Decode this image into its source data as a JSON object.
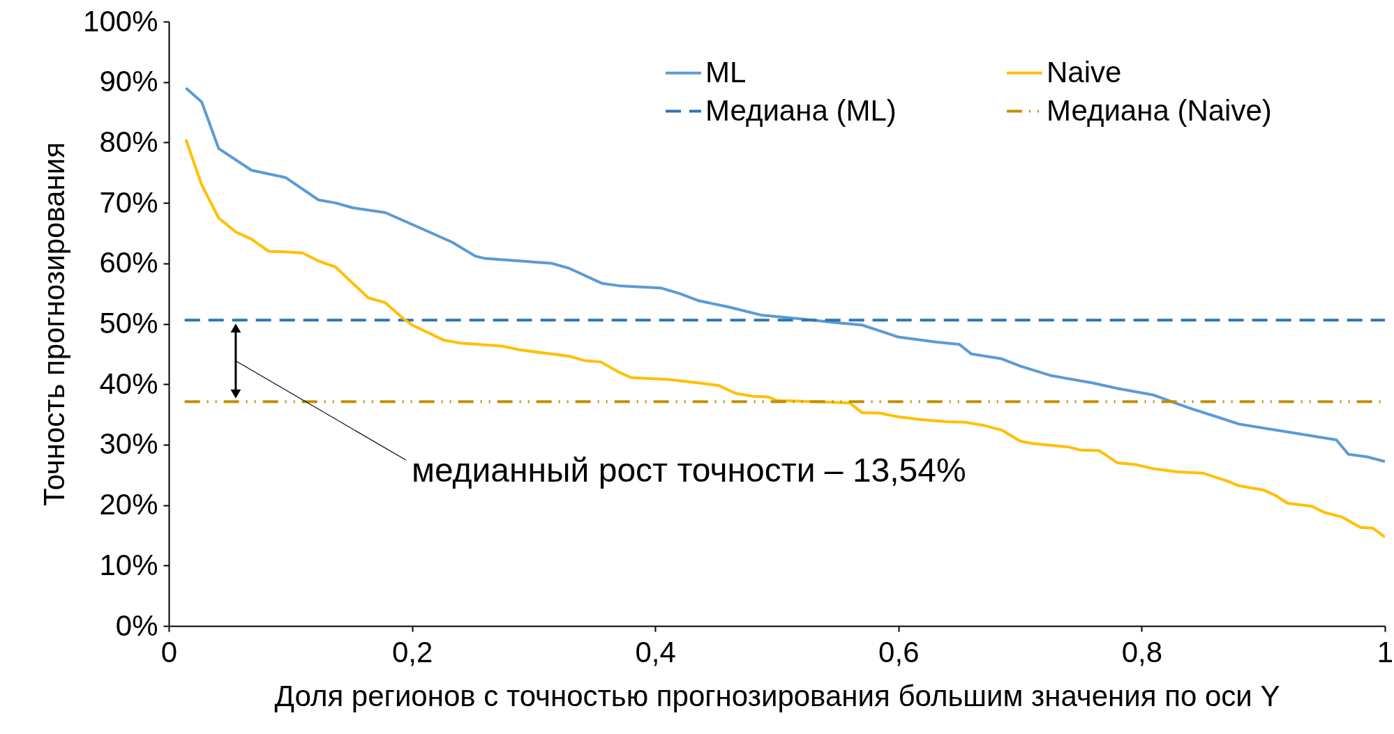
{
  "chart_data": {
    "type": "line",
    "xlabel": "Доля регионов с точностью прогнозирования большим значения по оси Y",
    "ylabel": "Точность прогнозирования",
    "xlim": [
      0,
      1
    ],
    "xticks": [
      0,
      {
        "value": 0.2,
        "label": "0,2"
      },
      {
        "value": 0.4,
        "label": "0,4"
      },
      {
        "value": 0.6,
        "label": "0,6"
      },
      {
        "value": 0.8,
        "label": "0,8"
      },
      1
    ],
    "ylim": [
      0,
      100
    ],
    "yticks": [
      {
        "value": 0,
        "label": "0%"
      },
      {
        "value": 10,
        "label": "10%"
      },
      {
        "value": 20,
        "label": "20%"
      },
      {
        "value": 30,
        "label": "30%"
      },
      {
        "value": 40,
        "label": "40%"
      },
      {
        "value": 50,
        "label": "50%"
      },
      {
        "value": 60,
        "label": "60%"
      },
      {
        "value": 70,
        "label": "70%"
      },
      {
        "value": 80,
        "label": "80%"
      },
      {
        "value": 90,
        "label": "90%"
      },
      {
        "value": 100,
        "label": "100%"
      }
    ],
    "grid": false,
    "legend": "top right",
    "marker": "none",
    "annotations": [
      "медианный рост точности – 13,54%"
    ],
    "series": [
      {
        "name": "ML",
        "color": "#5b9bd5",
        "line_style": "solid",
        "x": [
          0.014,
          0.027,
          0.041,
          0.068,
          0.096,
          0.123,
          0.137,
          0.151,
          0.178,
          0.205,
          0.233,
          0.252,
          0.26,
          0.315,
          0.329,
          0.356,
          0.37,
          0.405,
          0.42,
          0.436,
          0.46,
          0.488,
          0.52,
          0.548,
          0.57,
          0.582,
          0.6,
          0.63,
          0.65,
          0.66,
          0.685,
          0.7,
          0.726,
          0.76,
          0.78,
          0.81,
          0.826,
          0.84,
          0.868,
          0.88,
          0.96,
          0.97,
          0.985,
          1.0
        ],
        "values": [
          89,
          86.7,
          79,
          75.4,
          74.2,
          70.5,
          70,
          69.2,
          68.4,
          66,
          63.5,
          61.2,
          60.8,
          60,
          59.2,
          56.7,
          56.3,
          55.9,
          55,
          53.8,
          52.8,
          51.4,
          50.8,
          50.2,
          49.8,
          49,
          47.8,
          47,
          46.6,
          45,
          44.2,
          43,
          41.4,
          40.2,
          39.3,
          38.2,
          37,
          36,
          34.2,
          33.4,
          30.8,
          28.4,
          28,
          27.2
        ]
      },
      {
        "name": "Медиана (ML)",
        "color": "#2e75b6",
        "line_style": "dashed",
        "x": [
          0.013,
          1
        ],
        "values": [
          50.6,
          50.6
        ]
      },
      {
        "name": "Naive",
        "color": "#ffc000",
        "line_style": "solid",
        "x": [
          0.014,
          0.027,
          0.041,
          0.055,
          0.068,
          0.082,
          0.096,
          0.11,
          0.123,
          0.137,
          0.164,
          0.178,
          0.192,
          0.2,
          0.226,
          0.24,
          0.26,
          0.274,
          0.288,
          0.33,
          0.342,
          0.355,
          0.37,
          0.38,
          0.41,
          0.44,
          0.452,
          0.466,
          0.48,
          0.493,
          0.5,
          0.56,
          0.57,
          0.585,
          0.6,
          0.62,
          0.64,
          0.655,
          0.67,
          0.685,
          0.7,
          0.71,
          0.74,
          0.75,
          0.765,
          0.78,
          0.795,
          0.81,
          0.83,
          0.85,
          0.87,
          0.88,
          0.9,
          0.91,
          0.92,
          0.94,
          0.95,
          0.965,
          0.98,
          0.99,
          1.0
        ],
        "values": [
          80.5,
          73,
          67.5,
          65.2,
          64,
          62,
          61.9,
          61.7,
          60.4,
          59.4,
          54.3,
          53.5,
          51,
          49.8,
          47.3,
          46.8,
          46.5,
          46.3,
          45.7,
          44.6,
          43.9,
          43.7,
          42,
          41.1,
          40.8,
          40.1,
          39.8,
          38.5,
          38,
          37.9,
          37.3,
          36.9,
          35.3,
          35.2,
          34.6,
          34.1,
          33.8,
          33.7,
          33.2,
          32.4,
          30.6,
          30.2,
          29.6,
          29.1,
          29,
          27,
          26.7,
          26,
          25.5,
          25.3,
          24,
          23.2,
          22.5,
          21.6,
          20.3,
          19.8,
          18.8,
          18,
          16.3,
          16.2,
          14.7
        ]
      },
      {
        "name": "Медиана (Naive)",
        "color": "#bf9000",
        "line_style": "dotted",
        "x": [
          0.013,
          1
        ],
        "values": [
          37.1,
          37.1
        ]
      }
    ]
  }
}
